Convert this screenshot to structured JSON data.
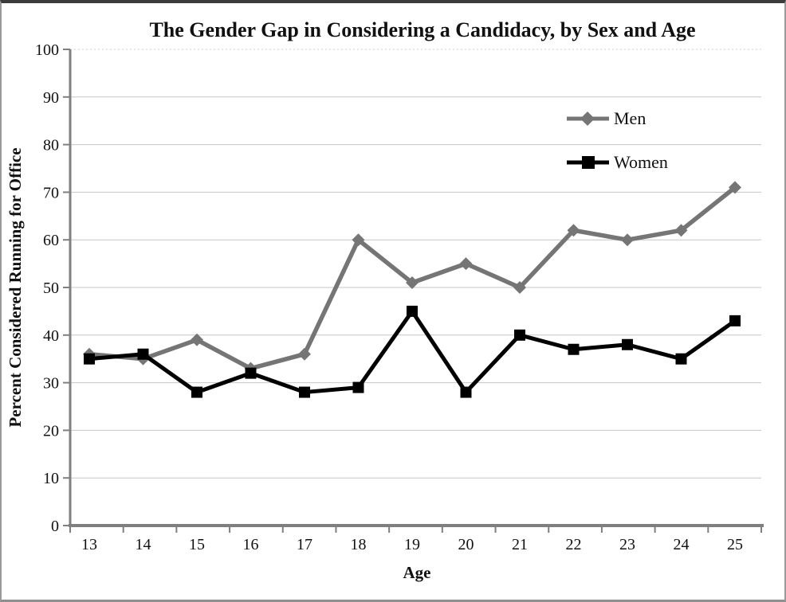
{
  "figure": {
    "kind": "static-line-chart-figure"
  },
  "chart_data": {
    "type": "line",
    "title": "The Gender Gap in Considering a Candidacy, by Sex and Age",
    "xlabel": "Age",
    "ylabel": "Percent Considered Running for Office",
    "categories": [
      13,
      14,
      15,
      16,
      17,
      18,
      19,
      20,
      21,
      22,
      23,
      24,
      25
    ],
    "series": [
      {
        "name": "Men",
        "marker": "diamond",
        "color": "#757575",
        "values": [
          36,
          35,
          39,
          33,
          36,
          60,
          51,
          55,
          50,
          62,
          60,
          62,
          71
        ]
      },
      {
        "name": "Women",
        "marker": "square",
        "color": "#000000",
        "values": [
          35,
          36,
          28,
          32,
          28,
          29,
          45,
          28,
          40,
          37,
          38,
          35,
          43
        ]
      }
    ],
    "ylim": [
      0,
      100
    ],
    "ytick_step": 10,
    "grid": true,
    "legend_position": "inside-top-right",
    "colors": {
      "gridline": "#c6c6c6",
      "top_gridline": "#cfcfcf",
      "axis": "#7f7f7f",
      "text": "#111111"
    }
  }
}
